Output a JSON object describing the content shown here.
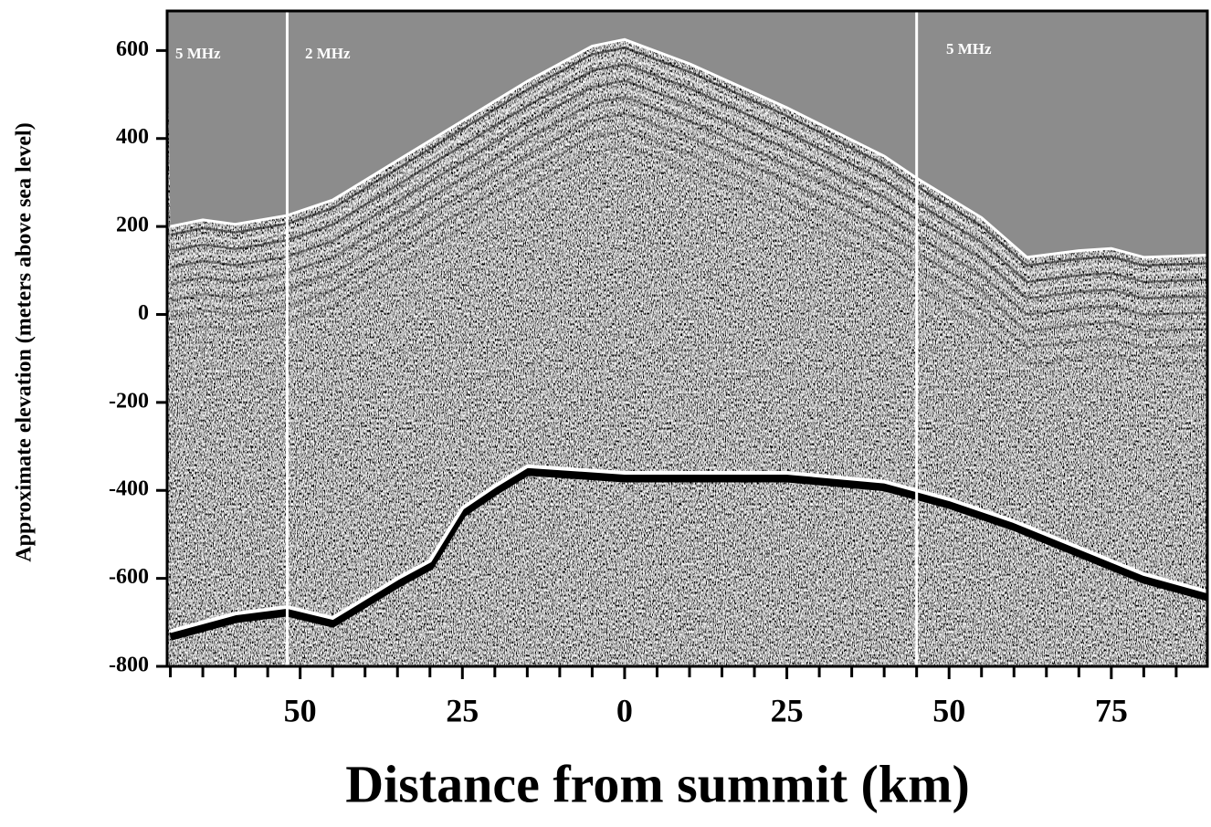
{
  "chart_data": {
    "type": "radargram",
    "ylabel": "Approximate elevation (meters above sea level)",
    "xlabel": "Distance from summit (km)",
    "xlim": [
      -70.5,
      89.8
    ],
    "ylim": [
      -800,
      690
    ],
    "xticks": [
      {
        "value": -50,
        "label": "50"
      },
      {
        "value": -25,
        "label": "25"
      },
      0,
      25,
      50,
      75
    ],
    "xminorticks": [
      -70,
      -65,
      -60,
      -55,
      -45,
      -40,
      -35,
      -30,
      -20,
      -15,
      -10,
      -5,
      5,
      10,
      15,
      20,
      30,
      35,
      40,
      45,
      55,
      60,
      65,
      70,
      80,
      85
    ],
    "yticks": [
      600,
      400,
      200,
      0,
      -200,
      -400,
      -600,
      -800
    ],
    "annotations": [
      "5 MHz",
      "2 MHz",
      "5 MHz"
    ],
    "boundaries": [
      -52,
      45
    ],
    "surface": {
      "x": [
        -70,
        -65,
        -60,
        -52,
        -45,
        -35,
        -25,
        -15,
        -5,
        0,
        10,
        25,
        40,
        45,
        55,
        62,
        70,
        75,
        80,
        89.8
      ],
      "y": [
        200,
        215,
        205,
        225,
        260,
        350,
        440,
        530,
        610,
        625,
        570,
        470,
        360,
        310,
        220,
        130,
        145,
        150,
        130,
        135
      ]
    },
    "basal_reflector": {
      "x": [
        -70,
        -60,
        -52,
        -45,
        -35,
        -30,
        -25,
        -20,
        -15,
        0,
        25,
        40,
        50,
        60,
        70,
        80,
        89.8
      ],
      "y": [
        -720,
        -680,
        -665,
        -690,
        -600,
        -560,
        -440,
        -390,
        -345,
        -360,
        -360,
        -380,
        -420,
        -470,
        -530,
        -590,
        -630
      ]
    }
  }
}
